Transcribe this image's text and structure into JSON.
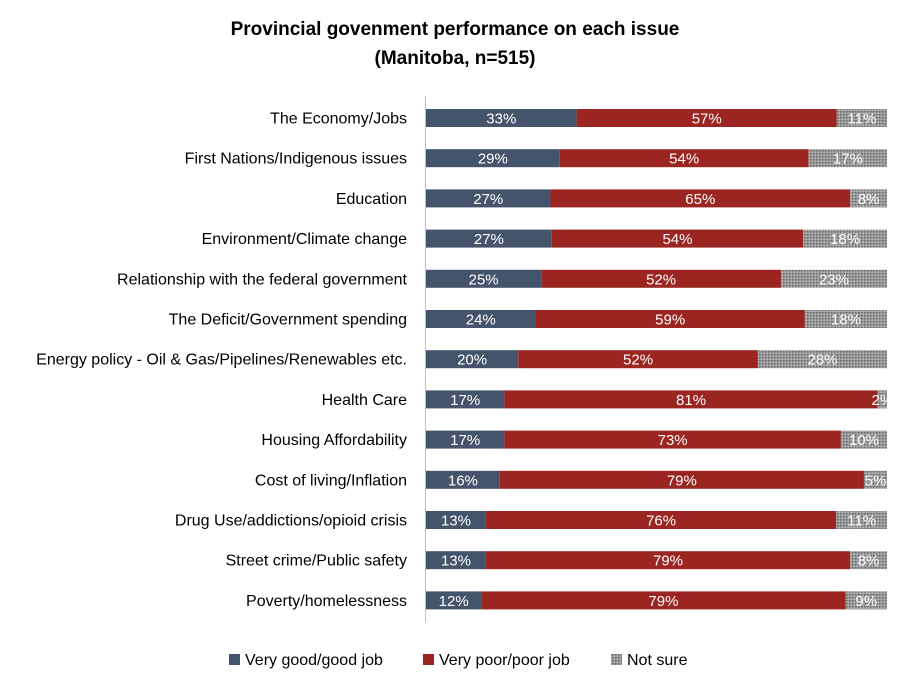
{
  "chart_data": {
    "type": "bar",
    "orientation": "horizontal",
    "stacked": true,
    "title": "Provincial govenment performance on each issue",
    "subtitle": "(Manitoba, n=515)",
    "categories": [
      "The Economy/Jobs",
      "First Nations/Indigenous issues",
      "Education",
      "Environment/Climate change",
      "Relationship with the federal government",
      "The Deficit/Government spending",
      "Energy policy - Oil & Gas/Pipelines/Renewables etc.",
      "Health Care",
      "Housing Affordability",
      "Cost of living/Inflation",
      "Drug Use/addictions/opioid crisis",
      "Street crime/Public safety",
      "Poverty/homelessness"
    ],
    "series": [
      {
        "name": "Very good/good job",
        "color": "#44546a",
        "values": [
          33,
          29,
          27,
          27,
          25,
          24,
          20,
          17,
          17,
          16,
          13,
          13,
          12
        ]
      },
      {
        "name": "Very poor/poor job",
        "color": "#9b2521",
        "values": [
          57,
          54,
          65,
          54,
          52,
          59,
          52,
          81,
          73,
          79,
          76,
          79,
          79
        ]
      },
      {
        "name": "Not sure",
        "color": "#8c8c8c",
        "pattern": "dotted",
        "values": [
          11,
          17,
          8,
          18,
          23,
          18,
          28,
          2,
          10,
          5,
          11,
          8,
          9
        ]
      }
    ],
    "value_suffix": "%",
    "legend_position": "bottom",
    "grid": false
  }
}
